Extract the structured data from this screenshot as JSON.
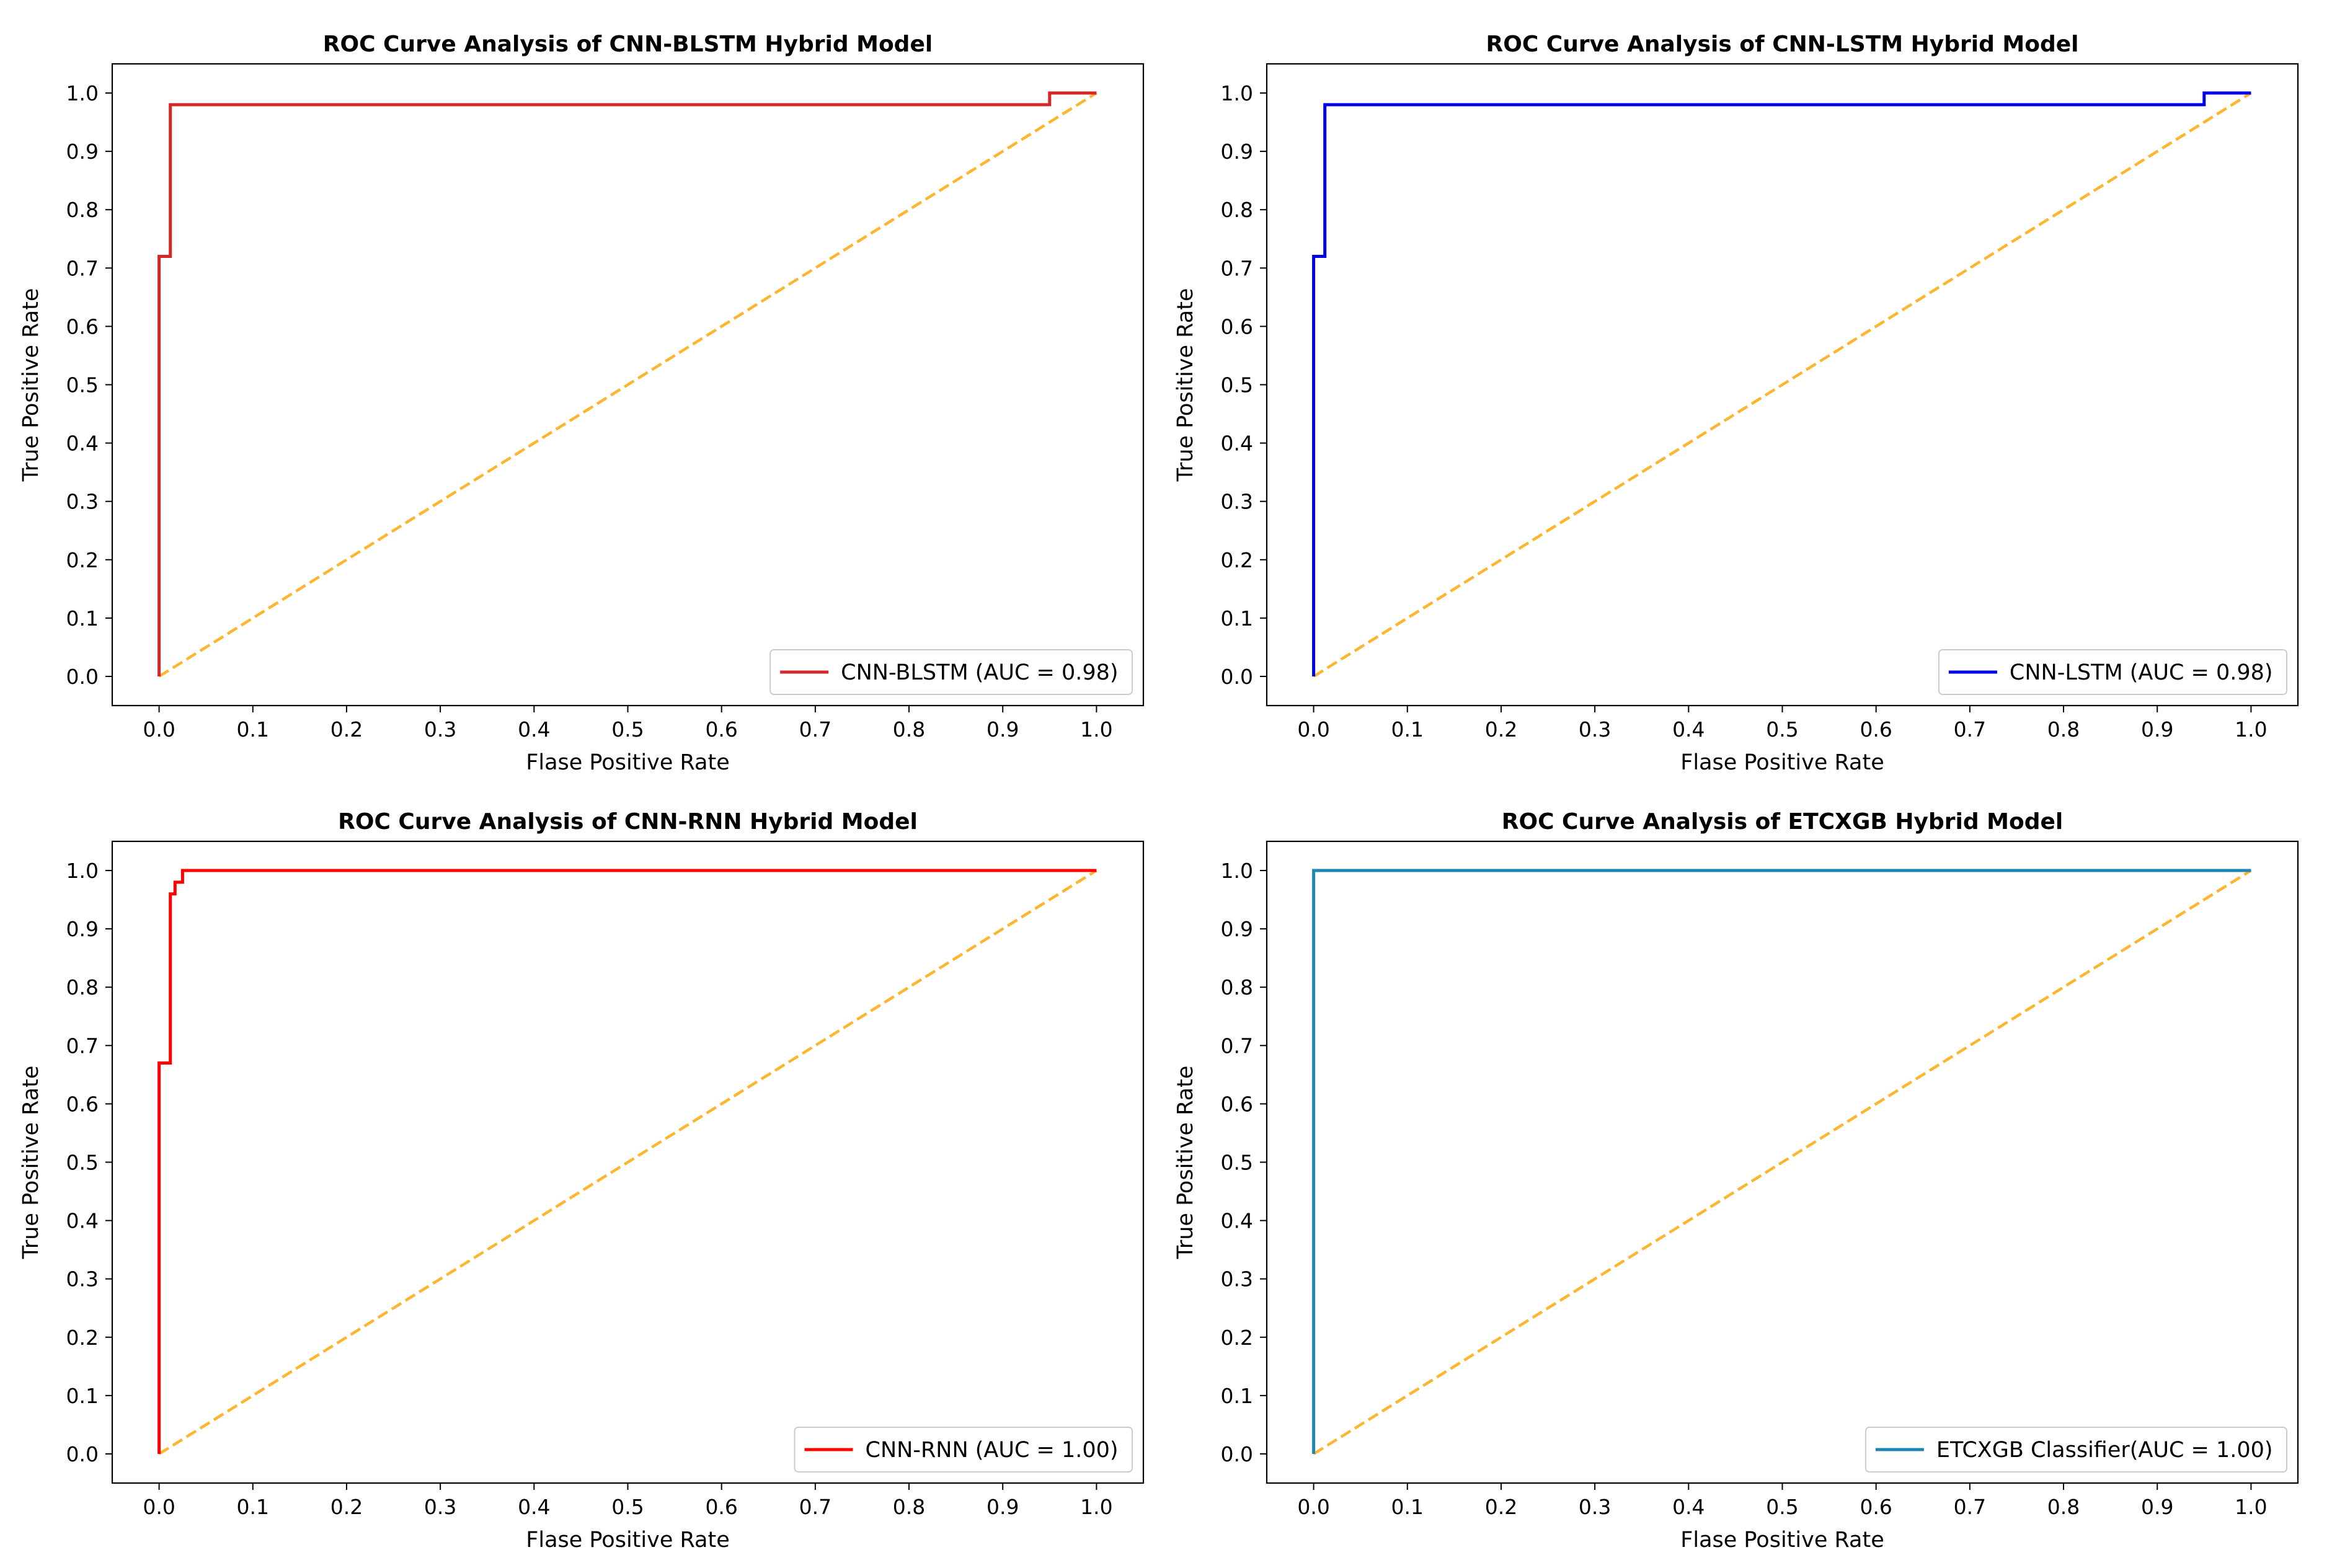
{
  "chart_data": [
    {
      "type": "line",
      "title": "ROC Curve Analysis of CNN-BLSTM Hybrid Model",
      "xlabel": "Flase Positive Rate",
      "ylabel": "True Positive Rate",
      "xlim": [
        -0.05,
        1.05
      ],
      "ylim": [
        -0.05,
        1.05
      ],
      "xticks": [
        "0.0",
        "0.1",
        "0.2",
        "0.3",
        "0.4",
        "0.5",
        "0.6",
        "0.7",
        "0.8",
        "0.9",
        "1.0"
      ],
      "yticks": [
        "0.0",
        "0.1",
        "0.2",
        "0.3",
        "0.4",
        "0.5",
        "0.6",
        "0.7",
        "0.8",
        "0.9",
        "1.0"
      ],
      "legend_position": "lower-right",
      "series": [
        {
          "name": "CNN-BLSTM (AUC = 0.98)",
          "color": "#d62728",
          "style": "solid",
          "x": [
            0.0,
            0.0,
            0.012,
            0.012,
            0.95,
            0.95,
            1.0
          ],
          "y": [
            0.0,
            0.72,
            0.72,
            0.98,
            0.98,
            1.0,
            1.0
          ]
        },
        {
          "name": "",
          "color": "#ffb52e",
          "style": "dashed",
          "x": [
            0.0,
            1.0
          ],
          "y": [
            0.0,
            1.0
          ]
        }
      ]
    },
    {
      "type": "line",
      "title": "ROC Curve Analysis of CNN-LSTM Hybrid Model",
      "xlabel": "Flase Positive Rate",
      "ylabel": "True Positive Rate",
      "xlim": [
        -0.05,
        1.05
      ],
      "ylim": [
        -0.05,
        1.05
      ],
      "xticks": [
        "0.0",
        "0.1",
        "0.2",
        "0.3",
        "0.4",
        "0.5",
        "0.6",
        "0.7",
        "0.8",
        "0.9",
        "1.0"
      ],
      "yticks": [
        "0.0",
        "0.1",
        "0.2",
        "0.3",
        "0.4",
        "0.5",
        "0.6",
        "0.7",
        "0.8",
        "0.9",
        "1.0"
      ],
      "legend_position": "lower-right",
      "series": [
        {
          "name": "CNN-LSTM (AUC = 0.98)",
          "color": "#0000e6",
          "style": "solid",
          "x": [
            0.0,
            0.0,
            0.012,
            0.012,
            0.95,
            0.95,
            1.0
          ],
          "y": [
            0.0,
            0.72,
            0.72,
            0.98,
            0.98,
            1.0,
            1.0
          ]
        },
        {
          "name": "",
          "color": "#ffb52e",
          "style": "dashed",
          "x": [
            0.0,
            1.0
          ],
          "y": [
            0.0,
            1.0
          ]
        }
      ]
    },
    {
      "type": "line",
      "title": "ROC Curve Analysis of CNN-RNN Hybrid Model",
      "xlabel": "Flase Positive Rate",
      "ylabel": "True Positive Rate",
      "xlim": [
        -0.05,
        1.05
      ],
      "ylim": [
        -0.05,
        1.05
      ],
      "xticks": [
        "0.0",
        "0.1",
        "0.2",
        "0.3",
        "0.4",
        "0.5",
        "0.6",
        "0.7",
        "0.8",
        "0.9",
        "1.0"
      ],
      "yticks": [
        "0.0",
        "0.1",
        "0.2",
        "0.3",
        "0.4",
        "0.5",
        "0.6",
        "0.7",
        "0.8",
        "0.9",
        "1.0"
      ],
      "legend_position": "lower-right",
      "series": [
        {
          "name": "CNN-RNN (AUC = 1.00)",
          "color": "#ff0000",
          "style": "solid",
          "x": [
            0.0,
            0.0,
            0.012,
            0.012,
            0.017,
            0.017,
            0.025,
            0.025,
            1.0
          ],
          "y": [
            0.0,
            0.67,
            0.67,
            0.96,
            0.96,
            0.98,
            0.98,
            1.0,
            1.0
          ]
        },
        {
          "name": "",
          "color": "#ffb52e",
          "style": "dashed",
          "x": [
            0.0,
            1.0
          ],
          "y": [
            0.0,
            1.0
          ]
        }
      ]
    },
    {
      "type": "line",
      "title": "ROC Curve Analysis of ETCXGB Hybrid Model",
      "xlabel": "Flase Positive Rate",
      "ylabel": "True Positive Rate",
      "xlim": [
        -0.05,
        1.05
      ],
      "ylim": [
        -0.05,
        1.05
      ],
      "xticks": [
        "0.0",
        "0.1",
        "0.2",
        "0.3",
        "0.4",
        "0.5",
        "0.6",
        "0.7",
        "0.8",
        "0.9",
        "1.0"
      ],
      "yticks": [
        "0.0",
        "0.1",
        "0.2",
        "0.3",
        "0.4",
        "0.5",
        "0.6",
        "0.7",
        "0.8",
        "0.9",
        "1.0"
      ],
      "legend_position": "lower-right",
      "series": [
        {
          "name": "ETCXGB Classifier(AUC = 1.00)",
          "color": "#1f86b4",
          "style": "solid",
          "x": [
            0.0,
            0.0,
            1.0
          ],
          "y": [
            0.0,
            1.0,
            1.0
          ]
        },
        {
          "name": "",
          "color": "#ffb52e",
          "style": "dashed",
          "x": [
            0.0,
            1.0
          ],
          "y": [
            0.0,
            1.0
          ]
        }
      ]
    }
  ]
}
